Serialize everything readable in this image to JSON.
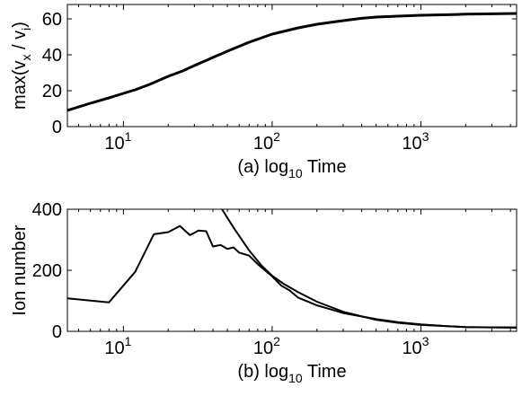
{
  "chart_data": [
    {
      "type": "line",
      "panel_label": "(a)",
      "xlabel_prefix": "log",
      "xlabel_sub": "10",
      "xlabel_suffix": " Time",
      "ylabel": "max(v",
      "ylabel_sub1": "x",
      "ylabel_mid": " / v",
      "ylabel_sub2": "i",
      "ylabel_end": ")",
      "xscale": "log",
      "xlim": [
        4.2,
        4400
      ],
      "ylim": [
        0,
        68
      ],
      "yticks": [
        "0",
        "20",
        "40",
        "60"
      ],
      "ytick_values": [
        0,
        20,
        40,
        60
      ],
      "xticks": [
        {
          "base": "10",
          "exp": "1",
          "value": 10
        },
        {
          "base": "10",
          "exp": "2",
          "value": 100
        },
        {
          "base": "10",
          "exp": "3",
          "value": 1000
        }
      ],
      "series": [
        {
          "color": "#000000",
          "x": [
            4.2,
            6,
            8,
            10,
            12,
            15,
            20,
            25,
            30,
            40,
            50,
            70,
            100,
            150,
            200,
            300,
            400,
            500,
            700,
            1000,
            1500,
            2000,
            3000,
            4400
          ],
          "y": [
            9,
            13,
            16,
            18.5,
            20.5,
            23.5,
            28,
            31,
            34,
            38.5,
            42,
            47,
            51.5,
            55,
            57,
            59,
            60.3,
            61,
            61.5,
            62,
            62.3,
            62.6,
            62.8,
            63
          ]
        }
      ]
    },
    {
      "type": "line",
      "panel_label": "(b)",
      "xlabel_prefix": "log",
      "xlabel_sub": "10",
      "xlabel_suffix": " Time",
      "ylabel": "Ion number",
      "xscale": "log",
      "xlim": [
        4.2,
        4400
      ],
      "ylim": [
        0,
        400
      ],
      "yticks": [
        "0",
        "200",
        "400"
      ],
      "ytick_values": [
        0,
        200,
        400
      ],
      "xticks": [
        {
          "base": "10",
          "exp": "1",
          "value": 10
        },
        {
          "base": "10",
          "exp": "2",
          "value": 100
        },
        {
          "base": "10",
          "exp": "3",
          "value": 1000
        }
      ],
      "series": [
        {
          "color": "#000000",
          "x": [
            4.2,
            8,
            12,
            16,
            20,
            24,
            28,
            32,
            36,
            40,
            45,
            50,
            55,
            60,
            70,
            80,
            100,
            115,
            130,
            150,
            200,
            300,
            500,
            700,
            1000,
            1500,
            2000,
            3000,
            4400
          ],
          "y": [
            108,
            95,
            195,
            318,
            325,
            345,
            315,
            330,
            328,
            278,
            283,
            270,
            275,
            258,
            248,
            220,
            180,
            150,
            135,
            110,
            85,
            60,
            40,
            30,
            23,
            17,
            14,
            13,
            13
          ]
        },
        {
          "color": "#000000",
          "x": [
            46,
            55,
            70,
            85,
            100,
            120,
            150,
            200,
            300,
            500,
            700,
            1000,
            2000,
            4400
          ],
          "y": [
            400,
            340,
            265,
            215,
            182,
            155,
            128,
            97,
            64,
            38,
            28,
            21,
            14,
            12
          ]
        }
      ]
    }
  ]
}
